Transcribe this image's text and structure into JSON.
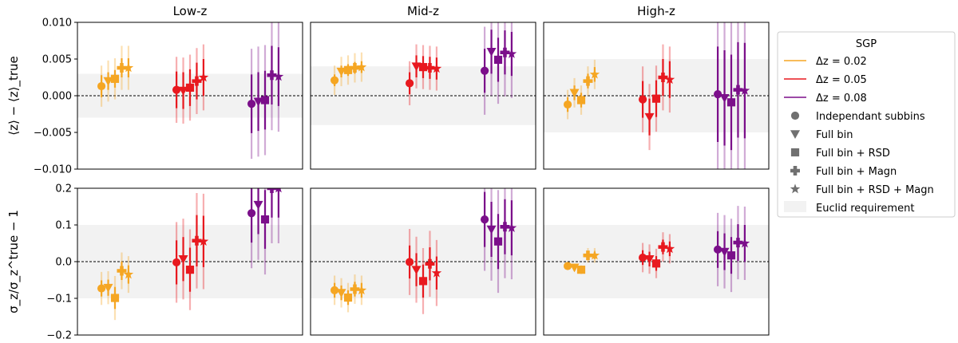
{
  "chart_data": {
    "type": "scatter",
    "subtype": "errorbar-grid",
    "columns": [
      "Low-z",
      "Mid-z",
      "High-z"
    ],
    "rows": [
      {
        "ylabel": "⟨z⟩ − ⟨z⟩_true",
        "ylim": [
          -0.01,
          0.01
        ],
        "yticks": [
          -0.01,
          -0.005,
          0.0,
          0.005,
          0.01
        ],
        "ytick_labels": [
          "−0.010",
          "−0.005",
          "0.000",
          "0.005",
          "0.010"
        ]
      },
      {
        "ylabel": "σ_z/σ_z^true − 1",
        "ylim": [
          -0.2,
          0.2
        ],
        "yticks": [
          -0.2,
          -0.1,
          0.0,
          0.1,
          0.2
        ],
        "ytick_labels": [
          "−0.2",
          "−0.1",
          "0.0",
          "0.1",
          "0.2"
        ]
      }
    ],
    "requirement_band": [
      [
        [
          -0.003,
          0.003
        ],
        [
          -0.004,
          0.004
        ],
        [
          -0.005,
          0.005
        ]
      ],
      [
        [
          -0.1,
          0.1
        ],
        [
          -0.1,
          0.1
        ],
        [
          -0.1,
          0.1
        ]
      ]
    ],
    "x_range": [
      0,
      3
    ],
    "group_centers": [
      0.5,
      1.5,
      2.5
    ],
    "marker_offsets": [
      -0.18,
      -0.09,
      0.0,
      0.09,
      0.18
    ],
    "series": [
      {
        "name": "Δz = 0.02",
        "color": "#f5a623",
        "values": [
          [
            [
              0.0013,
              0.0028,
              0.0015
            ],
            [
              0.002,
              0.0028,
              0.0012
            ],
            [
              0.0023,
              0.0028,
              0.0012
            ],
            [
              0.0038,
              0.003,
              0.0013
            ],
            [
              0.0038,
              0.003,
              0.0013
            ]
          ],
          [
            [
              0.0021,
              0.002,
              0.0008
            ],
            [
              0.0033,
              0.002,
              0.0008
            ],
            [
              0.0035,
              0.002,
              0.0008
            ],
            [
              0.0038,
              0.002,
              0.0008
            ],
            [
              0.0039,
              0.002,
              0.0008
            ]
          ],
          [
            [
              -0.0012,
              0.002,
              0.001
            ],
            [
              0.0004,
              0.002,
              0.001
            ],
            [
              -0.0006,
              0.002,
              0.001
            ],
            [
              0.002,
              0.002,
              0.001
            ],
            [
              0.0029,
              0.002,
              0.001
            ]
          ]
        ],
        "sigma": [
          [
            [
              -0.073,
              0.045,
              0.022
            ],
            [
              -0.071,
              0.045,
              0.022
            ],
            [
              -0.099,
              0.06,
              0.03
            ],
            [
              -0.025,
              0.05,
              0.025
            ],
            [
              -0.035,
              0.05,
              0.025
            ]
          ],
          [
            [
              -0.078,
              0.04,
              0.02
            ],
            [
              -0.085,
              0.04,
              0.02
            ],
            [
              -0.098,
              0.04,
              0.02
            ],
            [
              -0.075,
              0.04,
              0.02
            ],
            [
              -0.078,
              0.04,
              0.02
            ]
          ],
          [
            [
              -0.012,
              0.01,
              0.005
            ],
            [
              -0.016,
              0.01,
              0.005
            ],
            [
              -0.022,
              0.012,
              0.006
            ],
            [
              0.017,
              0.02,
              0.01
            ],
            [
              0.017,
              0.02,
              0.01
            ]
          ]
        ]
      },
      {
        "name": "Δz = 0.05",
        "color": "#e8191f",
        "values": [
          [
            [
              0.0008,
              0.0045,
              0.0025
            ],
            [
              0.0007,
              0.0045,
              0.0025
            ],
            [
              0.0011,
              0.0045,
              0.0025
            ],
            [
              0.002,
              0.0045,
              0.0025
            ],
            [
              0.0025,
              0.0045,
              0.0025
            ]
          ],
          [
            [
              0.0017,
              0.003,
              0.0015
            ],
            [
              0.004,
              0.003,
              0.0015
            ],
            [
              0.0039,
              0.003,
              0.0015
            ],
            [
              0.0038,
              0.003,
              0.0015
            ],
            [
              0.0037,
              0.003,
              0.0015
            ]
          ],
          [
            [
              -0.0005,
              0.0045,
              0.0025
            ],
            [
              -0.0029,
              0.0045,
              0.0025
            ],
            [
              -0.0004,
              0.0045,
              0.0025
            ],
            [
              0.0025,
              0.0045,
              0.0025
            ],
            [
              0.0022,
              0.0045,
              0.0025
            ]
          ]
        ],
        "sigma": [
          [
            [
              -0.002,
              0.11,
              0.06
            ],
            [
              0.007,
              0.11,
              0.06
            ],
            [
              -0.022,
              0.11,
              0.06
            ],
            [
              0.057,
              0.13,
              0.07
            ],
            [
              0.055,
              0.13,
              0.07
            ]
          ],
          [
            [
              -0.001,
              0.09,
              0.045
            ],
            [
              -0.022,
              0.09,
              0.045
            ],
            [
              -0.053,
              0.09,
              0.045
            ],
            [
              -0.006,
              0.09,
              0.045
            ],
            [
              -0.031,
              0.09,
              0.045
            ]
          ],
          [
            [
              0.011,
              0.04,
              0.02
            ],
            [
              0.007,
              0.04,
              0.02
            ],
            [
              -0.005,
              0.04,
              0.02
            ],
            [
              0.04,
              0.04,
              0.02
            ],
            [
              0.035,
              0.04,
              0.02
            ]
          ]
        ]
      },
      {
        "name": "Δz = 0.08",
        "color": "#7b0f8a",
        "values": [
          [
            [
              -0.0011,
              0.0075,
              0.004
            ],
            [
              -0.0008,
              0.0075,
              0.004
            ],
            [
              -0.0006,
              0.0075,
              0.004
            ],
            [
              0.0028,
              0.0075,
              0.004
            ],
            [
              0.0026,
              0.0075,
              0.004
            ]
          ],
          [
            [
              0.0034,
              0.006,
              0.003
            ],
            [
              0.006,
              0.006,
              0.003
            ],
            [
              0.0049,
              0.006,
              0.003
            ],
            [
              0.0059,
              0.006,
              0.003
            ],
            [
              0.0057,
              0.006,
              0.003
            ]
          ],
          [
            [
              0.0002,
              0.011,
              0.0065
            ],
            [
              -0.0003,
              0.011,
              0.0065
            ],
            [
              -0.0009,
              0.011,
              0.0065
            ],
            [
              0.0008,
              0.011,
              0.0065
            ],
            [
              0.0007,
              0.011,
              0.0065
            ]
          ]
        ],
        "sigma": [
          [
            [
              0.132,
              0.15,
              0.08
            ],
            [
              0.155,
              0.15,
              0.08
            ],
            [
              0.115,
              0.15,
              0.08
            ],
            [
              0.2,
              0.15,
              0.08
            ],
            [
              0.2,
              0.15,
              0.08
            ]
          ],
          [
            [
              0.115,
              0.14,
              0.075
            ],
            [
              0.088,
              0.14,
              0.075
            ],
            [
              0.055,
              0.14,
              0.075
            ],
            [
              0.095,
              0.14,
              0.075
            ],
            [
              0.092,
              0.14,
              0.075
            ]
          ],
          [
            [
              0.033,
              0.1,
              0.05
            ],
            [
              0.027,
              0.1,
              0.05
            ],
            [
              0.017,
              0.1,
              0.05
            ],
            [
              0.052,
              0.1,
              0.05
            ],
            [
              0.05,
              0.1,
              0.05
            ]
          ]
        ]
      }
    ],
    "markers": [
      "circle",
      "triangle-down",
      "square",
      "plus",
      "star"
    ],
    "legend": {
      "title": "SGP",
      "position": "right",
      "series_labels": [
        "Δz = 0.02",
        "Δz = 0.05",
        "Δz = 0.08"
      ],
      "marker_labels": [
        "Independant subbins",
        "Full bin",
        "Full bin + RSD",
        "Full bin + Magn",
        "Full bin + RSD + Magn"
      ],
      "band_label": "Euclid requirement"
    },
    "reference_line": 0.0
  }
}
